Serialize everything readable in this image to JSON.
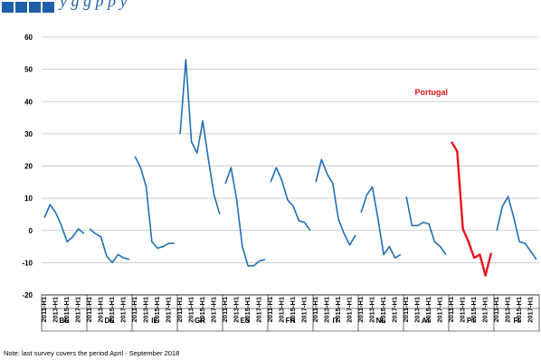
{
  "header": {
    "title_fragment": "y      g g p p         y"
  },
  "note": "Note: last survey covers the period April - September 2018",
  "colors": {
    "series": "#1f6fb5",
    "highlight": "#e8141c",
    "grid": "#bfbfbf",
    "logo": "#1f5fa8"
  },
  "chart_data": {
    "type": "line",
    "ylim": [
      -20,
      60
    ],
    "yticks": [
      -20,
      -10,
      0,
      10,
      20,
      30,
      40,
      50,
      60
    ],
    "grid": true,
    "period_labels": [
      "2011-H1",
      "2013-H1",
      "2015-H1",
      "2017-H1"
    ],
    "highlight": {
      "country": "PT",
      "label": "Portugal"
    },
    "countries": [
      {
        "code": "BE",
        "values": [
          4,
          8,
          5.5,
          1.5,
          -3.5,
          -2,
          0.5,
          -1
        ]
      },
      {
        "code": "DE",
        "values": [
          0.5,
          -1,
          -2,
          -8,
          -10,
          -7.5,
          -8.5,
          -9
        ]
      },
      {
        "code": "IE",
        "values": [
          23,
          19.5,
          13.5,
          -3.5,
          -5.5,
          -5,
          -4,
          -4
        ]
      },
      {
        "code": "GR",
        "values": [
          30,
          53,
          27.5,
          24,
          34,
          22,
          11,
          5
        ]
      },
      {
        "code": "ES",
        "values": [
          14.5,
          19.5,
          9.5,
          -5,
          -11,
          -11,
          -9.5,
          -9
        ]
      },
      {
        "code": "FR",
        "values": [
          15,
          19.5,
          15.5,
          9.5,
          7.5,
          3,
          2.5,
          0
        ]
      },
      {
        "code": "IT",
        "values": [
          15,
          22,
          17.5,
          14.5,
          3.5,
          -1,
          -4.5,
          -1.5
        ]
      },
      {
        "code": "NL",
        "values": [
          5.5,
          11,
          13.5,
          3.5,
          -7.5,
          -5,
          -8.5,
          -7.5
        ]
      },
      {
        "code": "AT",
        "values": [
          10.5,
          1.5,
          1.5,
          2.5,
          2,
          -3.5,
          -5,
          -7.5
        ]
      },
      {
        "code": "PT",
        "values": [
          27.5,
          24.5,
          0.5,
          -3.5,
          -8.5,
          -7.5,
          -14,
          -7
        ]
      },
      {
        "code": "FI",
        "values": [
          0,
          7.5,
          10.5,
          4,
          -3.5,
          -4,
          -6.5,
          -9
        ]
      }
    ]
  }
}
